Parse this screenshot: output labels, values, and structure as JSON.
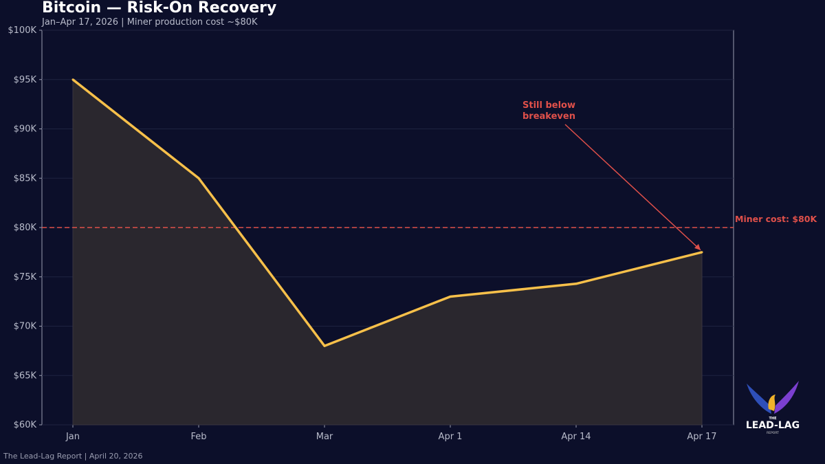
{
  "title": "Bitcoin — Risk-On Recovery",
  "subtitle": "Jan–Apr 17, 2026  |  Miner production cost ~$80K",
  "footer": "The Lead-Lag Report  |  April 20, 2026",
  "logo": {
    "text": "THE LEAD-LAG REPORT"
  },
  "chart_data": {
    "type": "area",
    "categories": [
      "Jan",
      "Feb",
      "Mar",
      "Apr 1",
      "Apr 14",
      "Apr 17"
    ],
    "values": [
      95000,
      85000,
      68000,
      73000,
      74300,
      77500
    ],
    "ylim": [
      60000,
      100000
    ],
    "yticks": [
      60000,
      65000,
      70000,
      75000,
      80000,
      85000,
      90000,
      95000,
      100000
    ],
    "ytick_labels": [
      "$60K",
      "$65K",
      "$70K",
      "$75K",
      "$80K",
      "$85K",
      "$90K",
      "$95K",
      "$100K"
    ],
    "grid": true,
    "line_color": "#f7c04a",
    "reference_line": {
      "value": 80000,
      "label": "Miner cost: $80K",
      "color": "#e0504a"
    },
    "annotation": {
      "text_line1": "Still below",
      "text_line2": "breakeven",
      "target_category": "Apr 17",
      "color": "#e0504a"
    }
  }
}
